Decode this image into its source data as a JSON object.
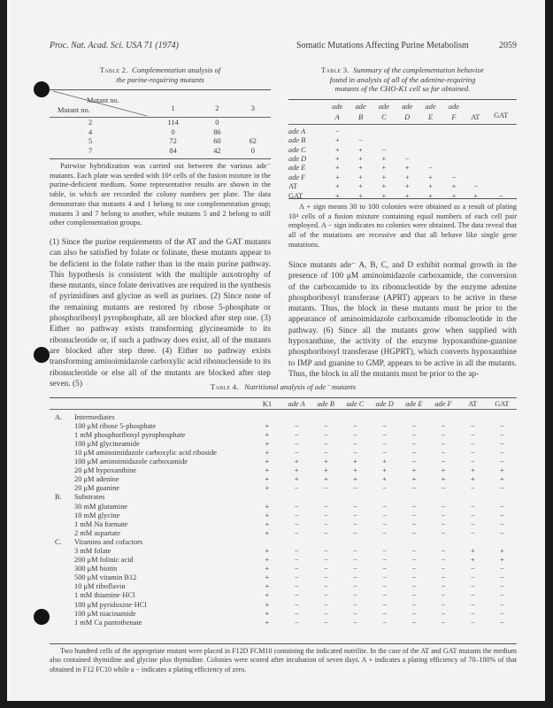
{
  "header": {
    "journal": "Proc. Nat. Acad. Sci. USA 71 (1974)",
    "running_title": "Somatic Mutations Affecting Purine Metabolism",
    "page_number": "2059"
  },
  "table2": {
    "label": "Table 2.",
    "title_line1": "Complementation analysis of",
    "title_line2": "the purine-requiring mutants",
    "col_header_top": "Mutant no.",
    "row_header": "Mutant no.",
    "columns": [
      "1",
      "2",
      "3"
    ],
    "rows": [
      {
        "id": "2",
        "values": [
          "114",
          "0",
          ""
        ]
      },
      {
        "id": "4",
        "values": [
          "0",
          "86",
          ""
        ]
      },
      {
        "id": "5",
        "values": [
          "72",
          "60",
          "62"
        ]
      },
      {
        "id": "7",
        "values": [
          "84",
          "42",
          "0"
        ]
      }
    ],
    "note": "Pairwise hybridization was carried out between the various ade⁻ mutants. Each plate was seeded with 10⁴ cells of the fusion mixture in the purine-deficient medium. Some representative results are shown in the table, in which are recorded the colony numbers per plate. The data demonstrate that mutants 4 and 1 belong to one complementation group; mutants 3 and 7 belong to another, while mutants 5 and 2 belong to still other complementation groups."
  },
  "table3": {
    "label": "Table 3.",
    "title_line1": "Summary of the complementation behavior",
    "title_line2": "found in analysis of all of the adenine-requiring",
    "title_line3": "mutants of the CHO-K1 cell so far obtained.",
    "columns": [
      {
        "top": "ade",
        "bottom": "A"
      },
      {
        "top": "ade",
        "bottom": "B"
      },
      {
        "top": "ade",
        "bottom": "C"
      },
      {
        "top": "ade",
        "bottom": "D"
      },
      {
        "top": "ade",
        "bottom": "E"
      },
      {
        "top": "ade",
        "bottom": "F"
      },
      {
        "top": "",
        "bottom": "AT"
      },
      {
        "top": "",
        "bottom": "GAT"
      }
    ],
    "rows": [
      {
        "label": "ade A",
        "values": [
          "−"
        ]
      },
      {
        "label": "ade B",
        "values": [
          "+",
          "−"
        ]
      },
      {
        "label": "ade C",
        "values": [
          "+",
          "+",
          "−"
        ]
      },
      {
        "label": "ade D",
        "values": [
          "+",
          "+",
          "+",
          "−"
        ]
      },
      {
        "label": "ade E",
        "values": [
          "+",
          "+",
          "+",
          "+",
          "−"
        ]
      },
      {
        "label": "ade F",
        "values": [
          "+",
          "+",
          "+",
          "+",
          "+",
          "−"
        ]
      },
      {
        "label": "AT",
        "values": [
          "+",
          "+",
          "+",
          "+",
          "+",
          "+",
          "−"
        ]
      },
      {
        "label": "GAT",
        "values": [
          "+",
          "+",
          "+",
          "+",
          "+",
          "+",
          "+",
          "−"
        ]
      }
    ],
    "note": "A + sign means 30 to 100 colonies were obtained as a result of plating 10⁴ cells of a fusion mixture containing equal numbers of each cell pair employed. A − sign indicates no colonies were obtained. The data reveal that all of the mutations are recessive and that all behave like single gene mutations."
  },
  "left_text": "(1) Since the purine requirements of the AT and the GAT mutants can also be satisfied by folate or folinate, these mutants appear to be deficient in the folate rather than in the main purine pathway. This hypothesis is consistent with the multiple auxotrophy of these mutants, since folate derivatives are required in the synthesis of pyrimidines and glycine as well as purines. (2) Since none of the remaining mutants are restored by ribose 5-phosphate or phosphoribosyl pyrophosphate, all are blocked after step one. (3) Either no pathway exists transforming glycineamide to its ribonucleotide or, if such a pathway does exist, all of the mutants are blocked after step three. (4) Either no pathway exists transforming aminoimidazole carboxylic acid ribonucleoside to its ribonucleotide or else all of the mutants are blocked after step seven. (5)",
  "right_text": "Since mutants ade⁻ A, B, C, and D exhibit normal growth in the presence of 100 μM aminoimidazole carboxamide, the conversion of the carboxamide to its ribonucleotide by the enzyme adenine phosphoribosyl transferase (APRT) appears to be active in these mutants. Thus, the block in these mutants must be prior to the appearance of aminoimidazole carboxamide ribonucleotide in the pathway. (6) Since all the mutants grow when supplied with hypoxanthine, the activity of the enzyme hypoxanthine-guanine phosphoribosyl transferase (HGPRT), which converts hypoxanthine to IMP and guanine to GMP, appears to be active in all the mutants. Thus, the block in all the mutants must be prior to the ap-",
  "table4": {
    "label": "Table 4.",
    "title": "Nutritional analysis of ade⁻ mutants",
    "columns": [
      "K1",
      "ade A",
      "ade B",
      "ade C",
      "ade D",
      "ade E",
      "ade F",
      "AT",
      "GAT"
    ],
    "rows": [
      {
        "section": "A.",
        "label": "Intermediates"
      },
      {
        "label": "100 μM ribose 5-phosphate",
        "values": [
          "+",
          "−",
          "−",
          "−",
          "−",
          "−",
          "−",
          "−",
          "−"
        ]
      },
      {
        "label": "1 mM phosphoribosyl pyrophosphate",
        "values": [
          "+",
          "−",
          "−",
          "−",
          "−",
          "−",
          "−",
          "−",
          "−"
        ]
      },
      {
        "label": "100 μM glycineamide",
        "values": [
          "+",
          "−",
          "−",
          "−",
          "−",
          "−",
          "−",
          "−",
          "−"
        ]
      },
      {
        "label": "10 μM aminoimidazole carboxylic acid riboside",
        "values": [
          "+",
          "−",
          "−",
          "−",
          "−",
          "−",
          "−",
          "−",
          "−"
        ]
      },
      {
        "label": "100 μM aminoimidazole carboxamide",
        "values": [
          "+",
          "+",
          "+",
          "+",
          "+",
          "−",
          "−",
          "−",
          "−"
        ]
      },
      {
        "label": "20 μM hypoxanthine",
        "values": [
          "+",
          "+",
          "+",
          "+",
          "+",
          "+",
          "+",
          "+",
          "+"
        ]
      },
      {
        "label": "20 μM adenine",
        "values": [
          "+",
          "+",
          "+",
          "+",
          "+",
          "+",
          "+",
          "+",
          "+"
        ]
      },
      {
        "label": "20 μM guanine",
        "values": [
          "+",
          "−",
          "−",
          "−",
          "−",
          "−",
          "−",
          "−",
          "−"
        ]
      },
      {
        "section": "B.",
        "label": "Substrates"
      },
      {
        "label": "30 mM glutamine",
        "values": [
          "+",
          "−",
          "−",
          "−",
          "−",
          "−",
          "−",
          "−",
          "−"
        ]
      },
      {
        "label": "10 mM glycine",
        "values": [
          "+",
          "−",
          "−",
          "−",
          "−",
          "−",
          "−",
          "−",
          "−"
        ]
      },
      {
        "label": "1 mM Na formate",
        "values": [
          "+",
          "−",
          "−",
          "−",
          "−",
          "−",
          "−",
          "−",
          "−"
        ]
      },
      {
        "label": "2 mM aspartate",
        "values": [
          "+",
          "−",
          "−",
          "−",
          "−",
          "−",
          "−",
          "−",
          "−"
        ]
      },
      {
        "section": "C.",
        "label": "Vitamins and cofactors"
      },
      {
        "label": "3 mM folate",
        "values": [
          "+",
          "−",
          "−",
          "−",
          "−",
          "−",
          "−",
          "+",
          "+"
        ]
      },
      {
        "label": "200 μM folinic acid",
        "values": [
          "+",
          "−",
          "−",
          "−",
          "−",
          "−",
          "−",
          "+",
          "+"
        ]
      },
      {
        "label": "300 μM biotin",
        "values": [
          "+",
          "−",
          "−",
          "−",
          "−",
          "−",
          "−",
          "−",
          "−"
        ]
      },
      {
        "label": "500 μM vitamin B12",
        "values": [
          "+",
          "−",
          "−",
          "−",
          "−",
          "−",
          "−",
          "−",
          "−"
        ]
      },
      {
        "label": "10 μM riboflavin",
        "values": [
          "+",
          "−",
          "−",
          "−",
          "−",
          "−",
          "−",
          "−",
          "−"
        ]
      },
      {
        "label": "1 mM thiamine·HCl",
        "values": [
          "+",
          "−",
          "−",
          "−",
          "−",
          "−",
          "−",
          "−",
          "−"
        ]
      },
      {
        "label": "100 μM pyridoxine·HCl",
        "values": [
          "+",
          "−",
          "−",
          "−",
          "−",
          "−",
          "−",
          "−",
          "−"
        ]
      },
      {
        "label": "100 μM niacinamide",
        "values": [
          "+",
          "−",
          "−",
          "−",
          "−",
          "−",
          "−",
          "−",
          "−"
        ]
      },
      {
        "label": "1 mM Ca pantothenate",
        "values": [
          "+",
          "−",
          "−",
          "−",
          "−",
          "−",
          "−",
          "−",
          "−"
        ]
      }
    ],
    "note": "Two hundred cells of the appropriate mutant were placed in F12D FCM10 containing the indicated nutrilite. In the case of the AT and GAT mutants the medium also contained thymidine and glycine plus thymidine. Colonies were scored after incubation of seven days. A + indicates a plating efficiency of 70–100% of that obtained in F12 FC10 while a − indicates a plating efficiency of zero."
  }
}
